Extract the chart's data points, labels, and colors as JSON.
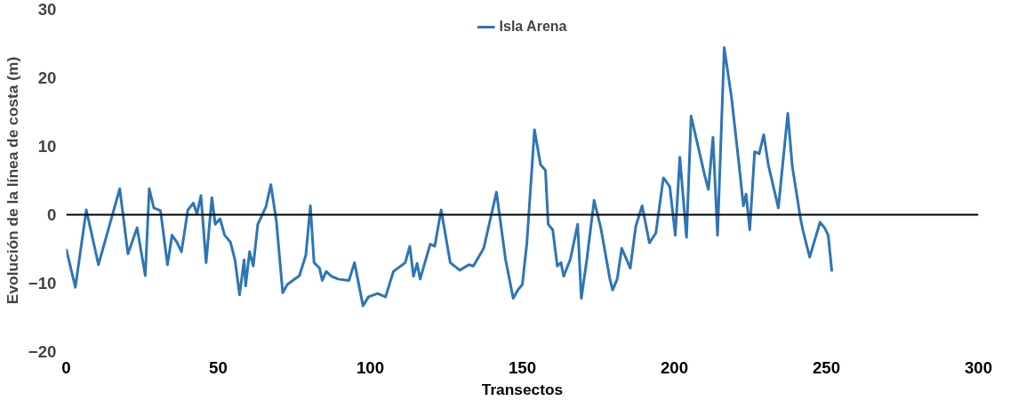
{
  "chart_data": {
    "type": "line",
    "xlabel": "Transectos",
    "ylabel": "Evolución de la línea de costa (m)",
    "xlim": [
      0,
      300
    ],
    "xticks": [
      0,
      50,
      100,
      150,
      200,
      250,
      300
    ],
    "ylim": [
      -20,
      30
    ],
    "yticks": [
      -20,
      -10,
      0,
      10,
      20,
      30
    ],
    "grid": false,
    "ref_lines": [
      {
        "axis": "y",
        "value": 0,
        "color": "#000000"
      }
    ],
    "legend": "top",
    "marker": "none",
    "line_style": "solid",
    "series": [
      {
        "name": "Isla Arena",
        "color": "#2e75b6",
        "x": [
          0,
          3,
          6.6,
          10.6,
          17.6,
          20.3,
          23.3,
          26,
          27.3,
          28.8,
          31,
          33.3,
          34.8,
          36.4,
          37.9,
          40,
          41.8,
          43,
          44.3,
          46,
          47.9,
          49,
          50.6,
          52.1,
          54,
          55.5,
          57,
          58.5,
          59,
          60.3,
          61.5,
          63,
          65.7,
          67.3,
          69.1,
          71.2,
          72.7,
          76.7,
          78.8,
          80.3,
          81.5,
          83.3,
          84.2,
          85.5,
          87.3,
          89.4,
          93,
          94.8,
          97.6,
          99.4,
          102.4,
          105,
          107.6,
          111.5,
          113,
          114.2,
          115.4,
          116.4,
          119.7,
          121.2,
          123.3,
          126.3,
          129.4,
          132.4,
          133.9,
          137.3,
          141.5,
          144.5,
          147,
          148.5,
          150,
          151.5,
          154,
          156,
          157.6,
          158.5,
          160,
          161.5,
          162.7,
          163.6,
          165.8,
          168.2,
          169.4,
          171.2,
          173.6,
          175.8,
          178.8,
          179.7,
          181.2,
          182.7,
          185.5,
          187.3,
          189.4,
          191.8,
          193.9,
          196.4,
          198.5,
          200.3,
          201.8,
          204,
          205.5,
          208.2,
          210,
          211.2,
          212.7,
          214.2,
          216.4,
          218.8,
          221.2,
          222.7,
          223.6,
          224.8,
          226.4,
          227.9,
          229.4,
          230.9,
          234.2,
          237.3,
          238.8,
          241.5,
          242.4,
          244.5,
          247.9,
          249.4,
          250.6,
          251.8
        ],
        "values": [
          -5,
          -10.6,
          0.7,
          -7.3,
          3.8,
          -5.7,
          -1.9,
          -8.9,
          3.8,
          1,
          0.6,
          -7.3,
          -3,
          -4,
          -5.4,
          0.7,
          1.7,
          0.1,
          2.8,
          -7,
          2.5,
          -1.4,
          -0.6,
          -3,
          -4,
          -6.6,
          -11.7,
          -6.6,
          -10.4,
          -5.4,
          -7.5,
          -1.4,
          1.2,
          4.4,
          -0.9,
          -11.4,
          -10.2,
          -8.9,
          -5.9,
          1.3,
          -7,
          -7.8,
          -9.6,
          -8.3,
          -9,
          -9.4,
          -9.6,
          -7,
          -13.3,
          -12,
          -11.5,
          -12,
          -8.3,
          -7,
          -4.6,
          -9,
          -7.1,
          -9.4,
          -4.3,
          -4.6,
          0.7,
          -7,
          -8.1,
          -7.3,
          -7.5,
          -4.9,
          3.3,
          -6.6,
          -12.2,
          -11,
          -10.2,
          -4.1,
          12.4,
          7.3,
          6.5,
          -1.4,
          -2.2,
          -7.5,
          -7,
          -9,
          -6.5,
          -1.4,
          -12.2,
          -6.6,
          2.1,
          -1.9,
          -9.4,
          -11,
          -9.4,
          -4.9,
          -7.8,
          -1.7,
          1.3,
          -4.1,
          -2.7,
          5.4,
          4.1,
          -3,
          8.4,
          -3.3,
          14.4,
          9.2,
          5.7,
          3.7,
          11.3,
          -3,
          24.4,
          17.1,
          7.6,
          1.3,
          3,
          -2.2,
          9.2,
          8.9,
          11.7,
          7.3,
          1,
          14.8,
          7,
          -0.6,
          -2.5,
          -6.2,
          -1.1,
          -1.9,
          -3,
          -8.3
        ]
      }
    ]
  }
}
